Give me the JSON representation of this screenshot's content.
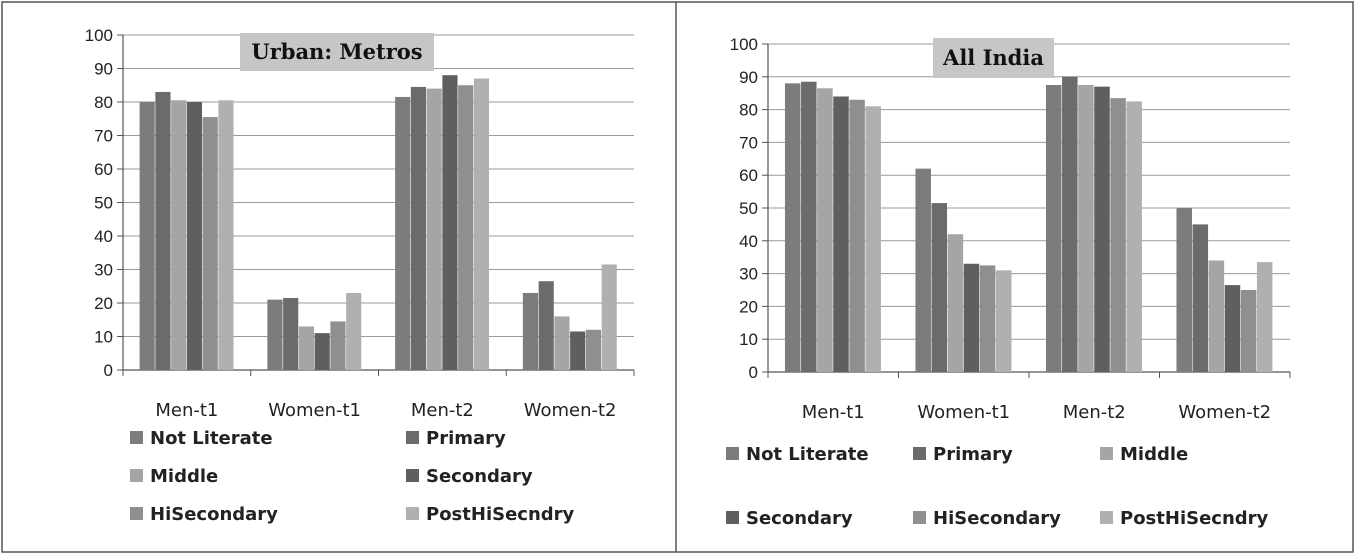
{
  "colors": {
    "Not Literate": "#7c7c7c",
    "Primary": "#6b6b6b",
    "Middle": "#a5a5a5",
    "Secondary": "#5f5f5f",
    "HiSecondary": "#8f8f8f",
    "PostHiSecndry": "#b0b0b0",
    "grid": "#9a9a9a",
    "title_box": "#c6c6c6",
    "frame": "#555555"
  },
  "chart_data": [
    {
      "type": "bar",
      "title": "Urban: Metros",
      "categories": [
        "Men-t1",
        "Women-t1",
        "Men-t2",
        "Women-t2"
      ],
      "ylim": [
        0,
        100
      ],
      "yticks": [
        0,
        10,
        20,
        30,
        40,
        50,
        60,
        70,
        80,
        90,
        100
      ],
      "grid": true,
      "legend_position": "bottom",
      "series": [
        {
          "name": "Not Literate",
          "values": [
            80,
            21,
            81.5,
            23
          ]
        },
        {
          "name": "Primary",
          "values": [
            83,
            21.5,
            84.5,
            26.5
          ]
        },
        {
          "name": "Middle",
          "values": [
            80.5,
            13,
            84,
            16
          ]
        },
        {
          "name": "Secondary",
          "values": [
            80,
            11,
            88,
            11.5
          ]
        },
        {
          "name": "HiSecondary",
          "values": [
            75.5,
            14.5,
            85,
            12
          ]
        },
        {
          "name": "PostHiSecndry",
          "values": [
            80.5,
            23,
            87,
            31.5
          ]
        }
      ]
    },
    {
      "type": "bar",
      "title": "All India",
      "categories": [
        "Men-t1",
        "Women-t1",
        "Men-t2",
        "Women-t2"
      ],
      "ylim": [
        0,
        100
      ],
      "yticks": [
        0,
        10,
        20,
        30,
        40,
        50,
        60,
        70,
        80,
        90,
        100
      ],
      "grid": true,
      "legend_position": "bottom",
      "series": [
        {
          "name": "Not Literate",
          "values": [
            88,
            62,
            87.5,
            50
          ]
        },
        {
          "name": "Primary",
          "values": [
            88.5,
            51.5,
            90,
            45
          ]
        },
        {
          "name": "Middle",
          "values": [
            86.5,
            42,
            87.5,
            34
          ]
        },
        {
          "name": "Secondary",
          "values": [
            84,
            33,
            87,
            26.5
          ]
        },
        {
          "name": "HiSecondary",
          "values": [
            83,
            32.5,
            83.5,
            25
          ]
        },
        {
          "name": "PostHiSecndry",
          "values": [
            81,
            31,
            82.5,
            33.5
          ]
        }
      ]
    }
  ]
}
